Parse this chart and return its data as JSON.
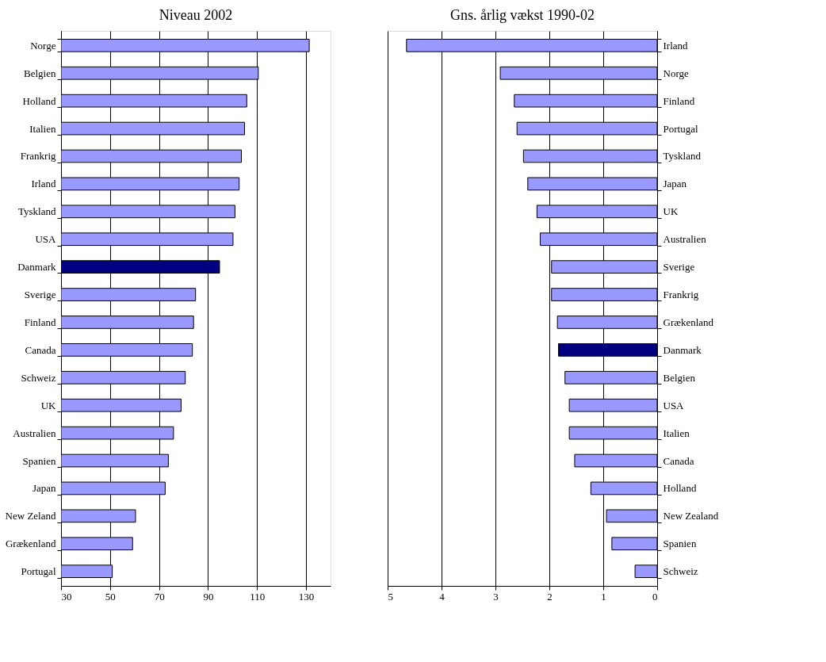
{
  "chart_data": [
    {
      "type": "bar",
      "orientation": "horizontal",
      "title": "Niveau 2002",
      "categories": [
        "Norge",
        "Belgien",
        "Holland",
        "Italien",
        "Frankrig",
        "Irland",
        "Tyskland",
        "USA",
        "Danmark",
        "Sverige",
        "Finland",
        "Canada",
        "Schweiz",
        "UK",
        "Australien",
        "Spanien",
        "Japan",
        "New Zeland",
        "Grækenland",
        "Portugal"
      ],
      "values": [
        131.3,
        110.5,
        105.8,
        104.9,
        103.6,
        102.7,
        101.0,
        100.2,
        94.7,
        84.9,
        84.1,
        83.6,
        80.7,
        79.0,
        75.9,
        73.8,
        72.5,
        60.4,
        59.2,
        50.9
      ],
      "colors": [
        "#9999ff",
        "#9999ff",
        "#9999ff",
        "#9999ff",
        "#9999ff",
        "#9999ff",
        "#9999ff",
        "#9999ff",
        "#000080",
        "#9999ff",
        "#9999ff",
        "#9999ff",
        "#9999ff",
        "#9999ff",
        "#9999ff",
        "#9999ff",
        "#9999ff",
        "#9999ff",
        "#9999ff",
        "#9999ff"
      ],
      "xlim": [
        30,
        140
      ],
      "xticks": [
        30,
        50,
        70,
        90,
        110,
        130
      ],
      "grid": "x"
    },
    {
      "type": "bar",
      "orientation": "horizontal",
      "title": "Gns. årlig vækst 1990-02",
      "categories": [
        "Irland",
        "Norge",
        "Finland",
        "Portugal",
        "Tyskland",
        "Japan",
        "UK",
        "Australien",
        "Sverige",
        "Frankrig",
        "Grækenland",
        "Danmark",
        "Belgien",
        "USA",
        "Italien",
        "Canada",
        "Holland",
        "New Zealand",
        "Spanien",
        "Schweiz"
      ],
      "values": [
        4.65,
        2.91,
        2.65,
        2.6,
        2.48,
        2.4,
        2.23,
        2.17,
        1.96,
        1.96,
        1.85,
        1.83,
        1.71,
        1.63,
        1.63,
        1.53,
        1.23,
        0.94,
        0.84,
        0.41
      ],
      "colors": [
        "#9999ff",
        "#9999ff",
        "#9999ff",
        "#9999ff",
        "#9999ff",
        "#9999ff",
        "#9999ff",
        "#9999ff",
        "#9999ff",
        "#9999ff",
        "#9999ff",
        "#000080",
        "#9999ff",
        "#9999ff",
        "#9999ff",
        "#9999ff",
        "#9999ff",
        "#9999ff",
        "#9999ff",
        "#9999ff"
      ],
      "xlim": [
        5,
        0
      ],
      "xticks": [
        5,
        4,
        3,
        2,
        1,
        0
      ],
      "grid": "x"
    }
  ]
}
